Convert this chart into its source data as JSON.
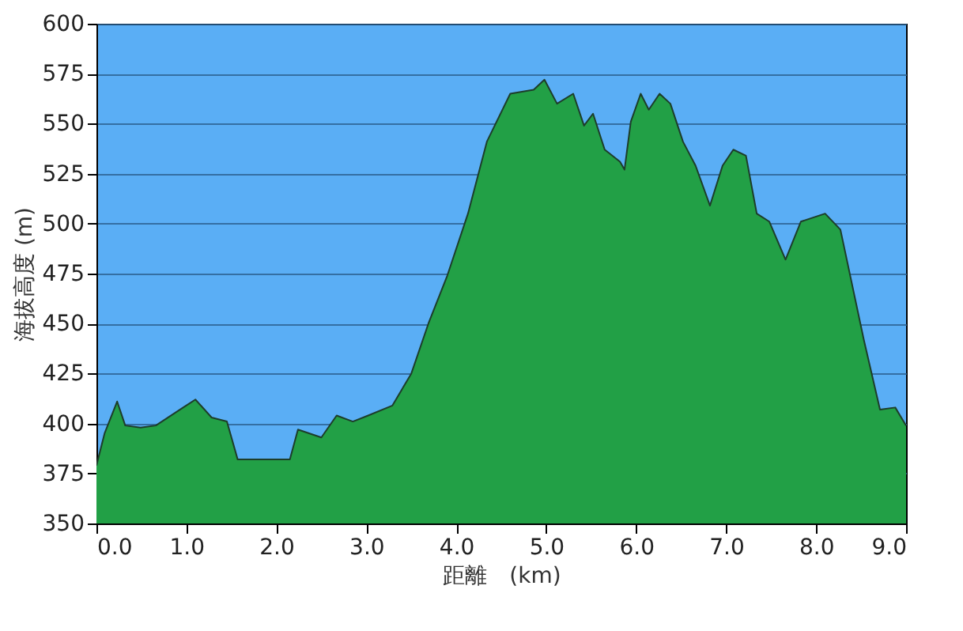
{
  "chart_data": {
    "type": "area",
    "xlabel": "距離　(km)",
    "ylabel": "海拔高度 (m)",
    "x": [
      0,
      0.09,
      0.23,
      0.32,
      0.49,
      0.66,
      0.93,
      1.1,
      1.28,
      1.45,
      1.57,
      1.89,
      2.15,
      2.24,
      2.5,
      2.67,
      2.85,
      3.02,
      3.29,
      3.5,
      3.69,
      3.9,
      4.13,
      4.34,
      4.6,
      4.86,
      4.98,
      5.12,
      5.3,
      5.42,
      5.52,
      5.65,
      5.82,
      5.87,
      5.94,
      6.05,
      6.14,
      6.26,
      6.38,
      6.52,
      6.66,
      6.82,
      6.96,
      7.08,
      7.22,
      7.34,
      7.48,
      7.66,
      7.83,
      8.1,
      8.27,
      8.53,
      8.71,
      8.88,
      9.0
    ],
    "series": [
      {
        "color": "#22a046",
        "values": [
          379,
          395,
          411,
          399,
          398,
          399,
          407,
          412,
          403,
          401,
          382,
          382,
          382,
          397,
          393,
          404,
          401,
          404,
          409,
          425,
          450,
          474,
          505,
          541,
          565,
          567,
          572,
          560,
          565,
          549,
          555,
          537,
          531,
          527,
          551,
          565,
          557,
          565,
          560,
          541,
          529,
          509,
          529,
          537,
          534,
          505,
          501,
          482,
          501,
          505,
          497,
          442,
          407,
          408,
          399
        ]
      }
    ],
    "xlim": [
      0,
      9
    ],
    "xticks": [
      {
        "value": 0,
        "label": "0.0"
      },
      {
        "value": 1,
        "label": "1.0"
      },
      {
        "value": 2,
        "label": "2.0"
      },
      {
        "value": 3,
        "label": "3.0"
      },
      {
        "value": 4,
        "label": "4.0"
      },
      {
        "value": 5,
        "label": "5.0"
      },
      {
        "value": 6,
        "label": "6.0"
      },
      {
        "value": 7,
        "label": "7.0"
      },
      {
        "value": 8,
        "label": "8.0"
      },
      {
        "value": 9,
        "label": "9.0"
      }
    ],
    "ylim": [
      350,
      600
    ],
    "yticks": [
      350,
      375,
      400,
      425,
      450,
      475,
      500,
      525,
      550,
      575,
      600
    ],
    "grid": "y"
  }
}
